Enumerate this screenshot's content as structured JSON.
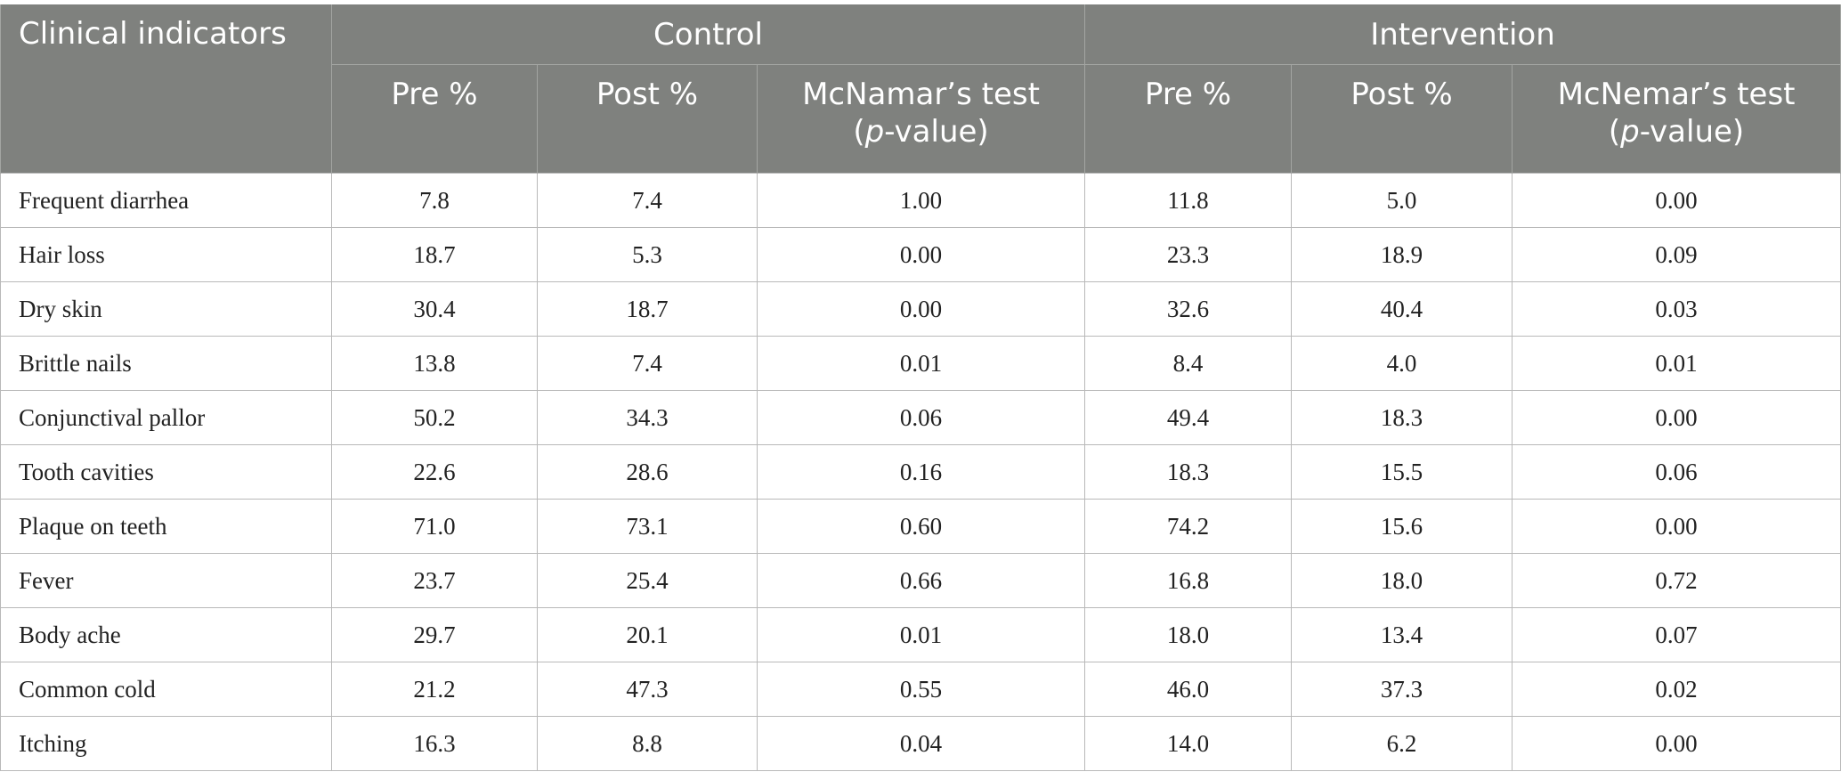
{
  "header": {
    "first_col": "Clinical indicators",
    "groups": [
      "Control",
      "Intervention"
    ],
    "control": {
      "pre": "Pre %",
      "post": "Post %",
      "test_line1": "McNamar’s test",
      "test_open": "(",
      "test_p": "p",
      "test_close": "-value)"
    },
    "intervention": {
      "pre": "Pre %",
      "post": "Post %",
      "test_line1": "McNemar’s test",
      "test_open": "(",
      "test_p": "p",
      "test_close": "-value)"
    }
  },
  "rows": [
    {
      "indicator": "Frequent diarrhea",
      "c_pre": "7.8",
      "c_post": "7.4",
      "c_p": "1.00",
      "i_pre": "11.8",
      "i_post": "5.0",
      "i_p": "0.00"
    },
    {
      "indicator": "Hair loss",
      "c_pre": "18.7",
      "c_post": "5.3",
      "c_p": "0.00",
      "i_pre": "23.3",
      "i_post": "18.9",
      "i_p": "0.09"
    },
    {
      "indicator": "Dry skin",
      "c_pre": "30.4",
      "c_post": "18.7",
      "c_p": "0.00",
      "i_pre": "32.6",
      "i_post": "40.4",
      "i_p": "0.03"
    },
    {
      "indicator": "Brittle nails",
      "c_pre": "13.8",
      "c_post": "7.4",
      "c_p": "0.01",
      "i_pre": "8.4",
      "i_post": "4.0",
      "i_p": "0.01"
    },
    {
      "indicator": "Conjunctival pallor",
      "c_pre": "50.2",
      "c_post": "34.3",
      "c_p": "0.06",
      "i_pre": "49.4",
      "i_post": "18.3",
      "i_p": "0.00"
    },
    {
      "indicator": "Tooth cavities",
      "c_pre": "22.6",
      "c_post": "28.6",
      "c_p": "0.16",
      "i_pre": "18.3",
      "i_post": "15.5",
      "i_p": "0.06"
    },
    {
      "indicator": "Plaque on teeth",
      "c_pre": "71.0",
      "c_post": "73.1",
      "c_p": "0.60",
      "i_pre": "74.2",
      "i_post": "15.6",
      "i_p": "0.00"
    },
    {
      "indicator": "Fever",
      "c_pre": "23.7",
      "c_post": "25.4",
      "c_p": "0.66",
      "i_pre": "16.8",
      "i_post": "18.0",
      "i_p": "0.72"
    },
    {
      "indicator": "Body ache",
      "c_pre": "29.7",
      "c_post": "20.1",
      "c_p": "0.01",
      "i_pre": "18.0",
      "i_post": "13.4",
      "i_p": "0.07"
    },
    {
      "indicator": "Common cold",
      "c_pre": "21.2",
      "c_post": "47.3",
      "c_p": "0.55",
      "i_pre": "46.0",
      "i_post": "37.3",
      "i_p": "0.02"
    },
    {
      "indicator": "Itching",
      "c_pre": "16.3",
      "c_post": "8.8",
      "c_p": "0.04",
      "i_pre": "14.0",
      "i_post": "6.2",
      "i_p": "0.00"
    }
  ]
}
